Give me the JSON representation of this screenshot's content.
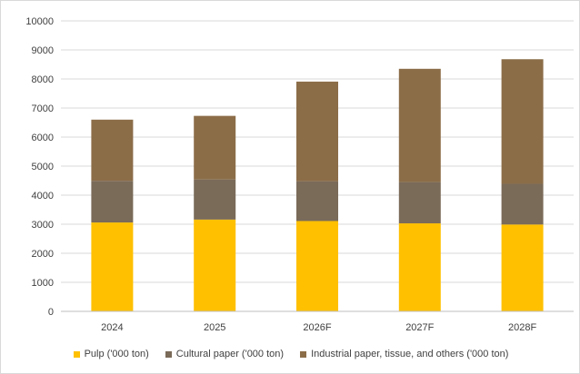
{
  "chart_data": {
    "type": "bar",
    "stacked": true,
    "title": "",
    "xlabel": "",
    "ylabel": "",
    "categories": [
      "2024",
      "2025",
      "2026F",
      "2027F",
      "2028F"
    ],
    "ylim": [
      0,
      10000
    ],
    "yticks": [
      0,
      1000,
      2000,
      3000,
      4000,
      5000,
      6000,
      7000,
      8000,
      9000,
      10000
    ],
    "grid": "horizontal",
    "legend_position": "bottom",
    "series": [
      {
        "name": "Pulp ('000 ton)",
        "color": "#ffc000",
        "values": [
          3060,
          3160,
          3110,
          3030,
          2990
        ]
      },
      {
        "name": "Cultural paper ('000 ton)",
        "color": "#7a6a58",
        "values": [
          1430,
          1380,
          1370,
          1420,
          1400
        ]
      },
      {
        "name": "Industrial paper, tissue, and others ('000 ton)",
        "color": "#8b6d48",
        "values": [
          2110,
          2190,
          3430,
          3900,
          4290
        ]
      }
    ]
  }
}
